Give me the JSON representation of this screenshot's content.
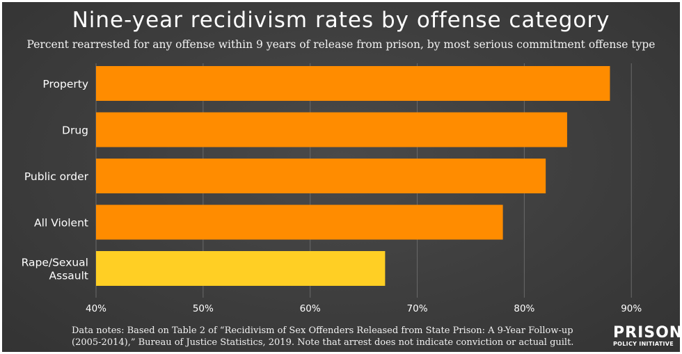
{
  "chart_data": {
    "type": "bar",
    "orientation": "horizontal",
    "title": "Nine-year recidivism rates by offense category",
    "subtitle": "Percent rearrested for any offense within 9 years of release from prison, by most serious commitment offense type",
    "categories": [
      "Property",
      "Drug",
      "Public order",
      "All Violent",
      "Rape/Sexual Assault"
    ],
    "category_lines": [
      [
        "Property"
      ],
      [
        "Drug"
      ],
      [
        "Public order"
      ],
      [
        "All Violent"
      ],
      [
        "Rape/Sexual",
        "Assault"
      ]
    ],
    "values": [
      88,
      84,
      82,
      78,
      67
    ],
    "bar_colors": [
      "#ff8c00",
      "#ff8c00",
      "#ff8c00",
      "#ff8c00",
      "#ffcf24"
    ],
    "xlim": [
      40,
      92
    ],
    "xticks": [
      40,
      50,
      60,
      70,
      80,
      90
    ],
    "xtick_labels": [
      "40%",
      "50%",
      "60%",
      "70%",
      "80%",
      "90%"
    ],
    "grid": true,
    "xlabel": "",
    "ylabel": ""
  },
  "notes": {
    "line1": "Data notes: Based on Table 2 of “Recidivism of Sex Offenders Released from State Prison: A 9-Year Follow-up",
    "line2": "(2005-2014),” Bureau of Justice Statistics, 2019. Note that arrest does not indicate conviction or actual guilt."
  },
  "logo": {
    "big": "PRISON",
    "small": "POLICY INITIATIVE"
  },
  "colors": {
    "background": "#3d3d3d",
    "text": "#ffffff",
    "bar_main": "#ff8c00",
    "bar_highlight": "#ffcf24",
    "gridline": "#6a6a6a"
  }
}
